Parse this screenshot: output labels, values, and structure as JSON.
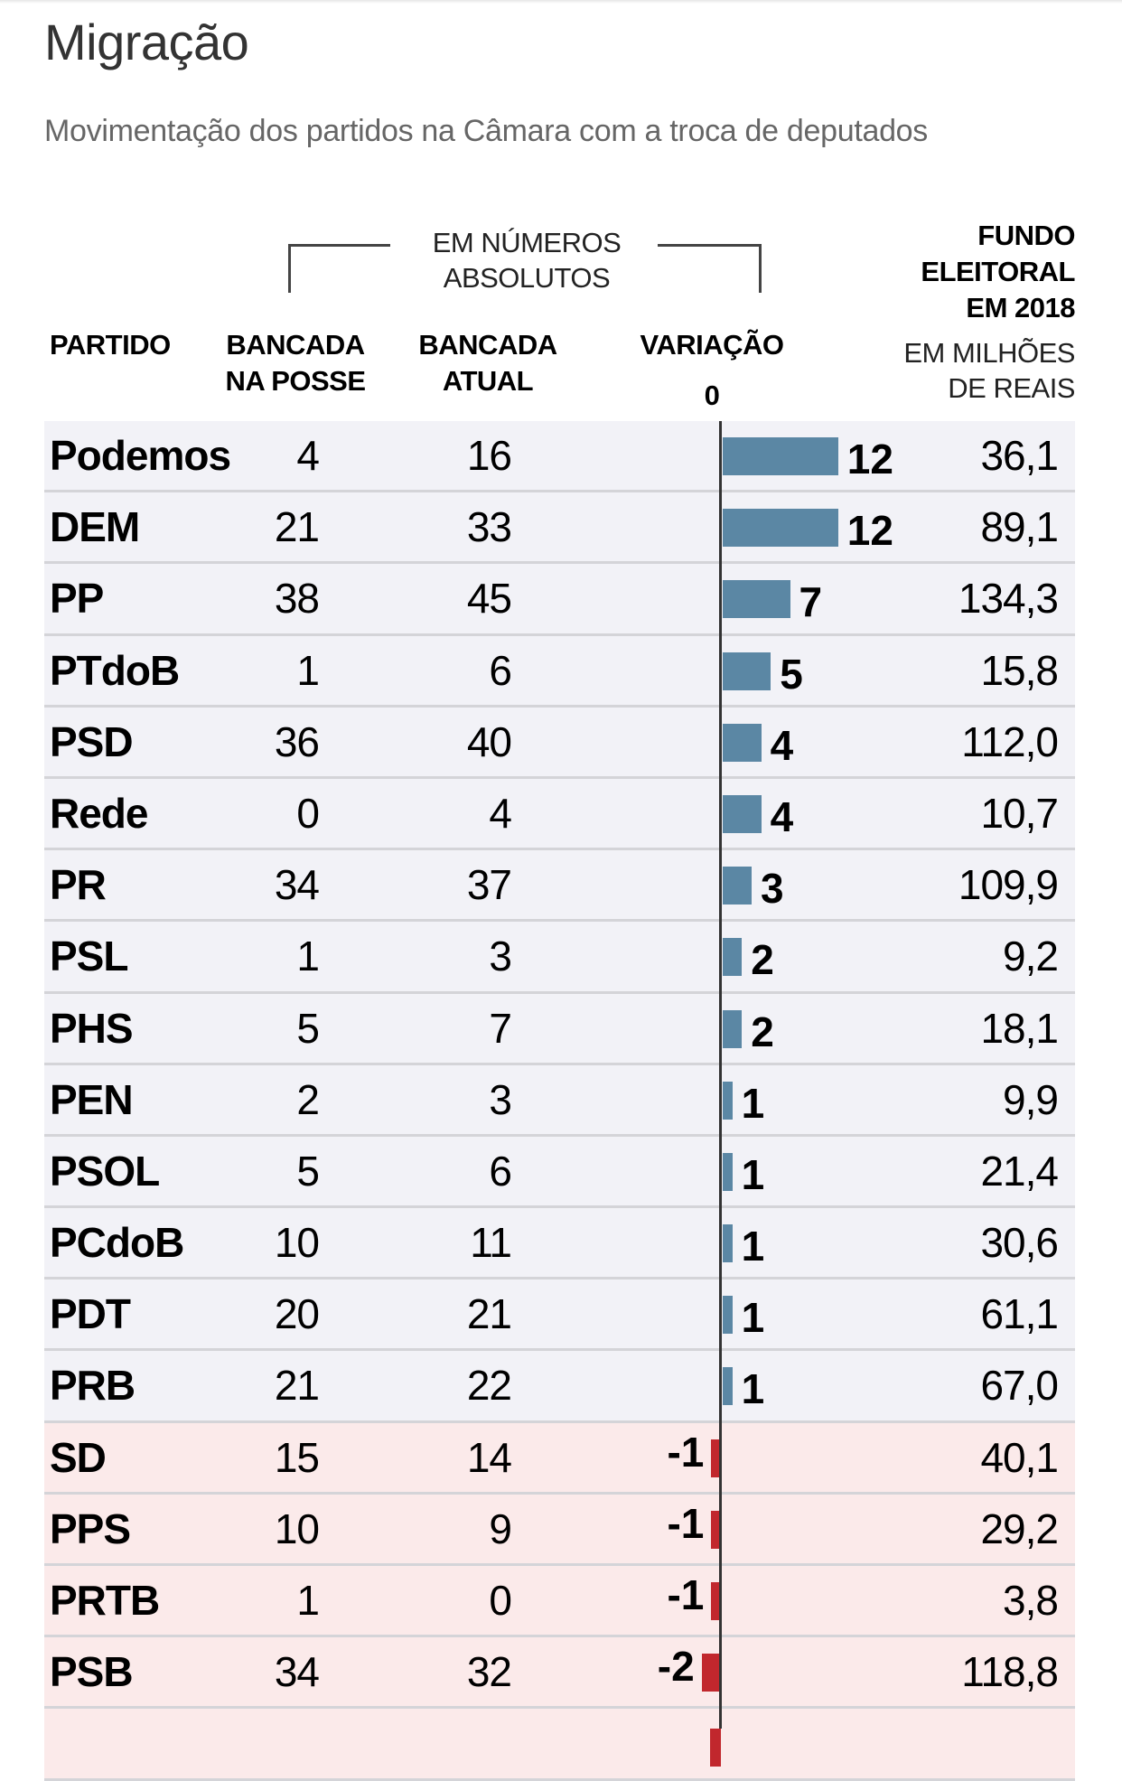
{
  "title": "Migração",
  "subtitle": "Movimentação dos partidos na Câmara com a troca de deputados",
  "headers": {
    "group_line1": "EM NÚMEROS",
    "group_line2": "ABSOLUTOS",
    "partido": "PARTIDO",
    "posse_line1": "BANCADA",
    "posse_line2": "NA POSSE",
    "atual_line1": "BANCADA",
    "atual_line2": "ATUAL",
    "variacao": "VARIAÇÃO",
    "zero": "0",
    "fundo_line1": "FUNDO",
    "fundo_line2": "ELEITORAL",
    "fundo_line3": "EM 2018",
    "unit_line1": "EM MILHÕES",
    "unit_line2": "DE REAIS"
  },
  "colors": {
    "positive": "#5b87a4",
    "negative": "#c1272d",
    "row_positive": "#f2f2f7",
    "row_negative": "#fbeaea"
  },
  "chart_data": {
    "type": "bar",
    "title": "Migração",
    "subtitle": "Movimentação dos partidos na Câmara com a troca de deputados",
    "columns": [
      "PARTIDO",
      "BANCADA NA POSSE",
      "BANCADA ATUAL",
      "VARIAÇÃO",
      "FUNDO ELEITORAL EM 2018 (EM MILHÕES DE REAIS)"
    ],
    "rows": [
      {
        "party": "Podemos",
        "posse": "4",
        "atual": "16",
        "variacao": 12,
        "fundo": "36,1"
      },
      {
        "party": "DEM",
        "posse": "21",
        "atual": "33",
        "variacao": 12,
        "fundo": "89,1"
      },
      {
        "party": "PP",
        "posse": "38",
        "atual": "45",
        "variacao": 7,
        "fundo": "134,3"
      },
      {
        "party": "PTdoB",
        "posse": "1",
        "atual": "6",
        "variacao": 5,
        "fundo": "15,8"
      },
      {
        "party": "PSD",
        "posse": "36",
        "atual": "40",
        "variacao": 4,
        "fundo": "112,0"
      },
      {
        "party": "Rede",
        "posse": "0",
        "atual": "4",
        "variacao": 4,
        "fundo": "10,7"
      },
      {
        "party": "PR",
        "posse": "34",
        "atual": "37",
        "variacao": 3,
        "fundo": "109,9"
      },
      {
        "party": "PSL",
        "posse": "1",
        "atual": "3",
        "variacao": 2,
        "fundo": "9,2"
      },
      {
        "party": "PHS",
        "posse": "5",
        "atual": "7",
        "variacao": 2,
        "fundo": "18,1"
      },
      {
        "party": "PEN",
        "posse": "2",
        "atual": "3",
        "variacao": 1,
        "fundo": "9,9"
      },
      {
        "party": "PSOL",
        "posse": "5",
        "atual": "6",
        "variacao": 1,
        "fundo": "21,4"
      },
      {
        "party": "PCdoB",
        "posse": "10",
        "atual": "11",
        "variacao": 1,
        "fundo": "30,6"
      },
      {
        "party": "PDT",
        "posse": "20",
        "atual": "21",
        "variacao": 1,
        "fundo": "61,1"
      },
      {
        "party": "PRB",
        "posse": "21",
        "atual": "22",
        "variacao": 1,
        "fundo": "67,0"
      },
      {
        "party": "SD",
        "posse": "15",
        "atual": "14",
        "variacao": -1,
        "fundo": "40,1"
      },
      {
        "party": "PPS",
        "posse": "10",
        "atual": "9",
        "variacao": -1,
        "fundo": "29,2"
      },
      {
        "party": "PRTB",
        "posse": "1",
        "atual": "0",
        "variacao": -1,
        "fundo": "3,8"
      },
      {
        "party": "PSB",
        "posse": "34",
        "atual": "32",
        "variacao": -2,
        "fundo": "118,8"
      }
    ]
  }
}
